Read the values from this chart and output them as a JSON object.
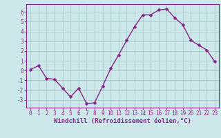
{
  "x": [
    0,
    1,
    2,
    3,
    4,
    5,
    6,
    7,
    8,
    9,
    10,
    11,
    12,
    13,
    14,
    15,
    16,
    17,
    18,
    19,
    20,
    21,
    22,
    23
  ],
  "y": [
    0.1,
    0.5,
    -0.8,
    -0.9,
    -1.8,
    -2.7,
    -1.8,
    -3.4,
    -3.3,
    -1.6,
    0.2,
    1.6,
    3.1,
    4.5,
    5.7,
    5.7,
    6.2,
    6.3,
    5.4,
    4.7,
    3.1,
    2.6,
    2.1,
    0.9
  ],
  "line_color": "#882288",
  "marker_color": "#882288",
  "bg_color": "#cce8ea",
  "grid_color": "#aacccc",
  "xlabel": "Windchill (Refroidissement éolien,°C)",
  "xlabel_color": "#882288",
  "tick_color": "#882288",
  "spine_color": "#882288",
  "ylim": [
    -3.8,
    6.8
  ],
  "xlim": [
    -0.5,
    23.5
  ],
  "yticks": [
    -3,
    -2,
    -1,
    0,
    1,
    2,
    3,
    4,
    5,
    6
  ],
  "xticks": [
    0,
    1,
    2,
    3,
    4,
    5,
    6,
    7,
    8,
    9,
    10,
    11,
    12,
    13,
    14,
    15,
    16,
    17,
    18,
    19,
    20,
    21,
    22,
    23
  ],
  "tick_fontsize": 5.5,
  "xlabel_fontsize": 6.5
}
